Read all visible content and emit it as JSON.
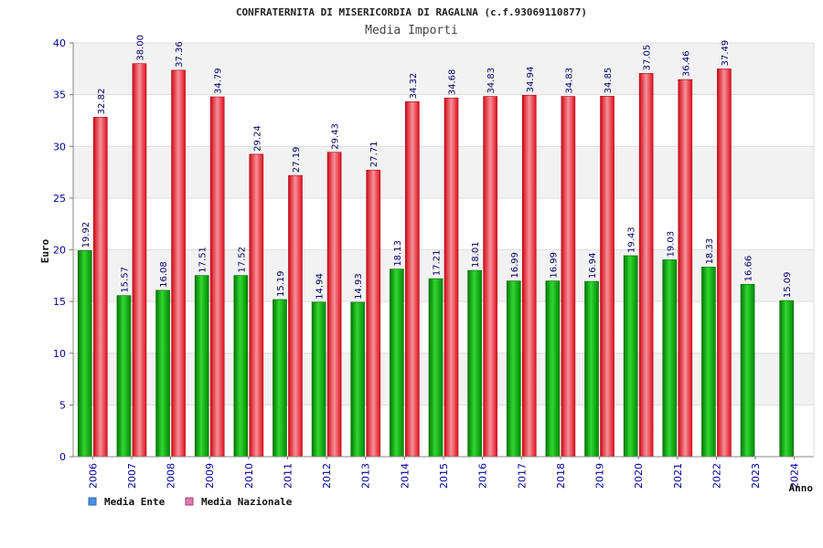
{
  "chart_data": {
    "type": "bar",
    "title": "CONFRATERNITA DI MISERICORDIA DI RAGALNA (c.f.93069110877)",
    "subtitle": "Media Importi",
    "ylabel": "Euro",
    "xlabel": "Anno",
    "ylim": [
      0,
      40
    ],
    "yticks": [
      "0",
      "5",
      "10",
      "15",
      "20",
      "25",
      "30",
      "35",
      "40"
    ],
    "grid": true,
    "legend_position": "bottom-left",
    "categories": [
      "2006",
      "2007",
      "2008",
      "2009",
      "2010",
      "2011",
      "2012",
      "2013",
      "2014",
      "2015",
      "2016",
      "2017",
      "2018",
      "2019",
      "2020",
      "2021",
      "2022",
      "2023",
      "2024"
    ],
    "series": [
      {
        "name": "Media Ente",
        "color": "#0aa00a",
        "legend_color": "#4a90e2",
        "values": [
          19.92,
          15.57,
          16.08,
          17.51,
          17.52,
          15.19,
          14.94,
          14.93,
          18.13,
          17.21,
          18.01,
          16.99,
          16.99,
          16.94,
          19.43,
          19.03,
          18.33,
          16.66,
          15.09
        ],
        "labels": [
          "19.92",
          "15.57",
          "16.08",
          "17.51",
          "17.52",
          "15.19",
          "14.94",
          "14.93",
          "18.13",
          "17.21",
          "18.01",
          "16.99",
          "16.99",
          "16.94",
          "19.43",
          "19.03",
          "18.33",
          "16.66",
          "15.09"
        ]
      },
      {
        "name": "Media Nazionale",
        "color": "#e8121e",
        "legend_color": "#e07ab0",
        "values": [
          32.82,
          38.0,
          37.36,
          34.79,
          29.24,
          27.19,
          29.43,
          27.71,
          34.32,
          34.68,
          34.83,
          34.94,
          34.83,
          34.85,
          37.05,
          36.46,
          37.49,
          null,
          null
        ],
        "labels": [
          "32.82",
          "38.00",
          "37.36",
          "34.79",
          "29.24",
          "27.19",
          "29.43",
          "27.71",
          "34.32",
          "34.68",
          "34.83",
          "34.94",
          "34.83",
          "34.85",
          "37.05",
          "36.46",
          "37.49",
          null,
          null
        ]
      }
    ]
  }
}
